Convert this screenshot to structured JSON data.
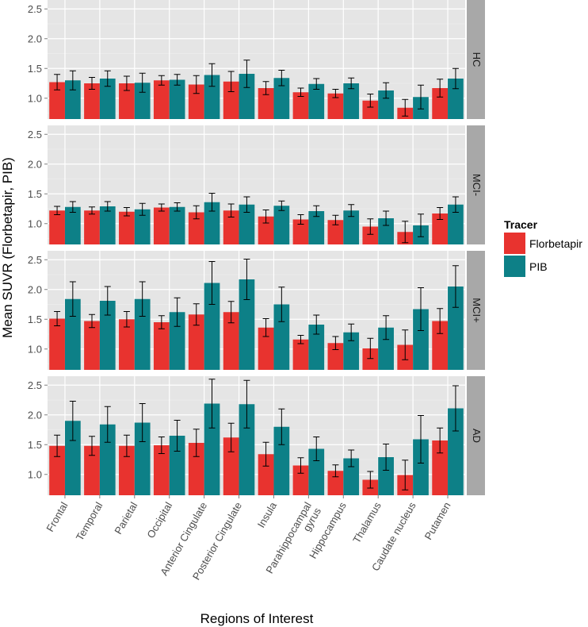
{
  "chart_data": {
    "type": "bar",
    "xlabel": "Regions of Interest",
    "ylabel": "Mean SUVR (Florbetapir, PIB)",
    "ylim": [
      0.65,
      2.65
    ],
    "yticks": [
      1.0,
      1.5,
      2.0,
      2.5
    ],
    "ytick_labels": [
      "1.0",
      "1.5",
      "2.0",
      "2.5"
    ],
    "grid": true,
    "legend": {
      "title": "Tracer",
      "position": "right"
    },
    "colors": {
      "Florbetapir": "#e8332f",
      "PIB": "#0d8087",
      "panel_bg": "#e5e5e5",
      "strip_bg": "#a8a8a8",
      "grid": "#ffffff"
    },
    "categories": [
      [
        "Frontal"
      ],
      [
        "Temporal"
      ],
      [
        "Parietal"
      ],
      [
        "Occipital"
      ],
      [
        "Anterior Cingulate"
      ],
      [
        "Posterior Cingulate"
      ],
      [
        "Insula"
      ],
      [
        "Parahippocampal",
        "gyrus"
      ],
      [
        "Hippocampus"
      ],
      [
        "Thalamus"
      ],
      [
        "Caudate nucleus"
      ],
      [
        "Putamen"
      ]
    ],
    "series_names": [
      "Florbetapir",
      "PIB"
    ],
    "panels": [
      {
        "label": "HC",
        "series": [
          {
            "name": "Florbetapir",
            "values": [
              1.27,
              1.25,
              1.25,
              1.3,
              1.23,
              1.28,
              1.17,
              1.1,
              1.08,
              0.96,
              0.84,
              1.17
            ],
            "errors": [
              0.13,
              0.1,
              0.12,
              0.08,
              0.15,
              0.17,
              0.11,
              0.07,
              0.07,
              0.11,
              0.14,
              0.15
            ]
          },
          {
            "name": "PIB",
            "values": [
              1.3,
              1.33,
              1.26,
              1.31,
              1.39,
              1.41,
              1.34,
              1.24,
              1.25,
              1.13,
              1.02,
              1.33
            ],
            "errors": [
              0.16,
              0.13,
              0.16,
              0.09,
              0.19,
              0.23,
              0.13,
              0.09,
              0.09,
              0.13,
              0.2,
              0.17
            ]
          }
        ]
      },
      {
        "label": "MCI-",
        "series": [
          {
            "name": "Florbetapir",
            "values": [
              1.22,
              1.22,
              1.2,
              1.27,
              1.19,
              1.22,
              1.12,
              1.07,
              1.06,
              0.95,
              0.86,
              1.17
            ],
            "errors": [
              0.07,
              0.06,
              0.07,
              0.06,
              0.11,
              0.11,
              0.11,
              0.08,
              0.08,
              0.13,
              0.18,
              0.1
            ]
          },
          {
            "name": "PIB",
            "values": [
              1.28,
              1.29,
              1.24,
              1.28,
              1.36,
              1.32,
              1.3,
              1.21,
              1.22,
              1.09,
              0.97,
              1.32
            ],
            "errors": [
              0.09,
              0.08,
              0.1,
              0.07,
              0.15,
              0.13,
              0.08,
              0.09,
              0.1,
              0.12,
              0.19,
              0.13
            ]
          }
        ]
      },
      {
        "label": "MCI+",
        "series": [
          {
            "name": "Florbetapir",
            "values": [
              1.51,
              1.47,
              1.5,
              1.45,
              1.58,
              1.62,
              1.36,
              1.16,
              1.1,
              1.01,
              1.07,
              1.47
            ],
            "errors": [
              0.12,
              0.11,
              0.13,
              0.11,
              0.18,
              0.18,
              0.15,
              0.07,
              0.11,
              0.17,
              0.25,
              0.21
            ]
          },
          {
            "name": "PIB",
            "values": [
              1.84,
              1.81,
              1.84,
              1.62,
              2.11,
              2.17,
              1.75,
              1.41,
              1.28,
              1.36,
              1.67,
              2.05
            ],
            "errors": [
              0.29,
              0.24,
              0.29,
              0.24,
              0.36,
              0.34,
              0.29,
              0.16,
              0.14,
              0.2,
              0.36,
              0.35
            ]
          }
        ]
      },
      {
        "label": "AD",
        "series": [
          {
            "name": "Florbetapir",
            "values": [
              1.48,
              1.48,
              1.48,
              1.49,
              1.53,
              1.62,
              1.34,
              1.15,
              1.06,
              0.91,
              0.99,
              1.57
            ],
            "errors": [
              0.18,
              0.16,
              0.18,
              0.14,
              0.23,
              0.24,
              0.2,
              0.13,
              0.1,
              0.14,
              0.25,
              0.21
            ]
          },
          {
            "name": "PIB",
            "values": [
              1.9,
              1.84,
              1.87,
              1.65,
              2.19,
              2.18,
              1.8,
              1.43,
              1.27,
              1.29,
              1.59,
              2.11
            ],
            "errors": [
              0.33,
              0.3,
              0.32,
              0.26,
              0.41,
              0.4,
              0.3,
              0.2,
              0.14,
              0.22,
              0.4,
              0.38
            ]
          }
        ]
      }
    ]
  }
}
